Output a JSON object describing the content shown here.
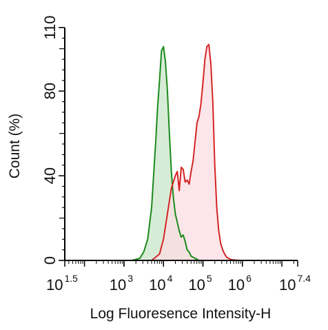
{
  "chart_data": {
    "type": "area",
    "xlabel": "Log Fluoresence Intensity-H",
    "ylabel": "Count  (%)",
    "x_scale": "log",
    "xlim_log10": [
      1.5,
      7.4
    ],
    "ylim": [
      0,
      110
    ],
    "x_ticks": [
      {
        "value": 1.5,
        "base": "10",
        "exp": "1.5"
      },
      {
        "value": 3,
        "base": "10",
        "exp": "3"
      },
      {
        "value": 4,
        "base": "10",
        "exp": "4"
      },
      {
        "value": 5,
        "base": "10",
        "exp": "5"
      },
      {
        "value": 6,
        "base": "10",
        "exp": "6"
      },
      {
        "value": 7.4,
        "base": "10",
        "exp": "7.4"
      }
    ],
    "y_ticks": [
      0,
      40,
      80,
      110
    ],
    "series": [
      {
        "color": "#1a8a1a",
        "fill": "#c9e6c9",
        "x": [
          3.2,
          3.4,
          3.5,
          3.6,
          3.7,
          3.8,
          3.85,
          3.9,
          3.95,
          4.0,
          4.05,
          4.1,
          4.15,
          4.2,
          4.25,
          4.3,
          4.35,
          4.4,
          4.45,
          4.5,
          4.55,
          4.6,
          4.65,
          4.7,
          4.8,
          4.9
        ],
        "y": [
          0,
          1,
          4,
          10,
          25,
          55,
          72,
          85,
          99,
          101,
          94,
          80,
          60,
          42,
          30,
          22,
          18,
          14,
          11,
          12,
          9,
          5,
          4,
          2,
          1,
          0
        ]
      },
      {
        "color": "#d42424",
        "fill": "#fbdde2",
        "x": [
          3.7,
          3.9,
          4.0,
          4.1,
          4.2,
          4.3,
          4.35,
          4.4,
          4.45,
          4.5,
          4.55,
          4.6,
          4.65,
          4.7,
          4.75,
          4.8,
          4.85,
          4.9,
          4.95,
          5.0,
          5.05,
          5.1,
          5.15,
          5.2,
          5.25,
          5.3,
          5.35,
          5.4,
          5.45,
          5.5,
          5.55,
          5.6,
          5.65,
          5.7,
          5.75,
          5.85,
          5.95
        ],
        "y": [
          0,
          3,
          10,
          22,
          34,
          40,
          42,
          33,
          44,
          43,
          37,
          38,
          36,
          42,
          47,
          56,
          65,
          68,
          74,
          84,
          95,
          101,
          102,
          93,
          75,
          45,
          25,
          14,
          8,
          5,
          3,
          1.5,
          1,
          0.5,
          0.3,
          0.1,
          0
        ]
      }
    ]
  }
}
